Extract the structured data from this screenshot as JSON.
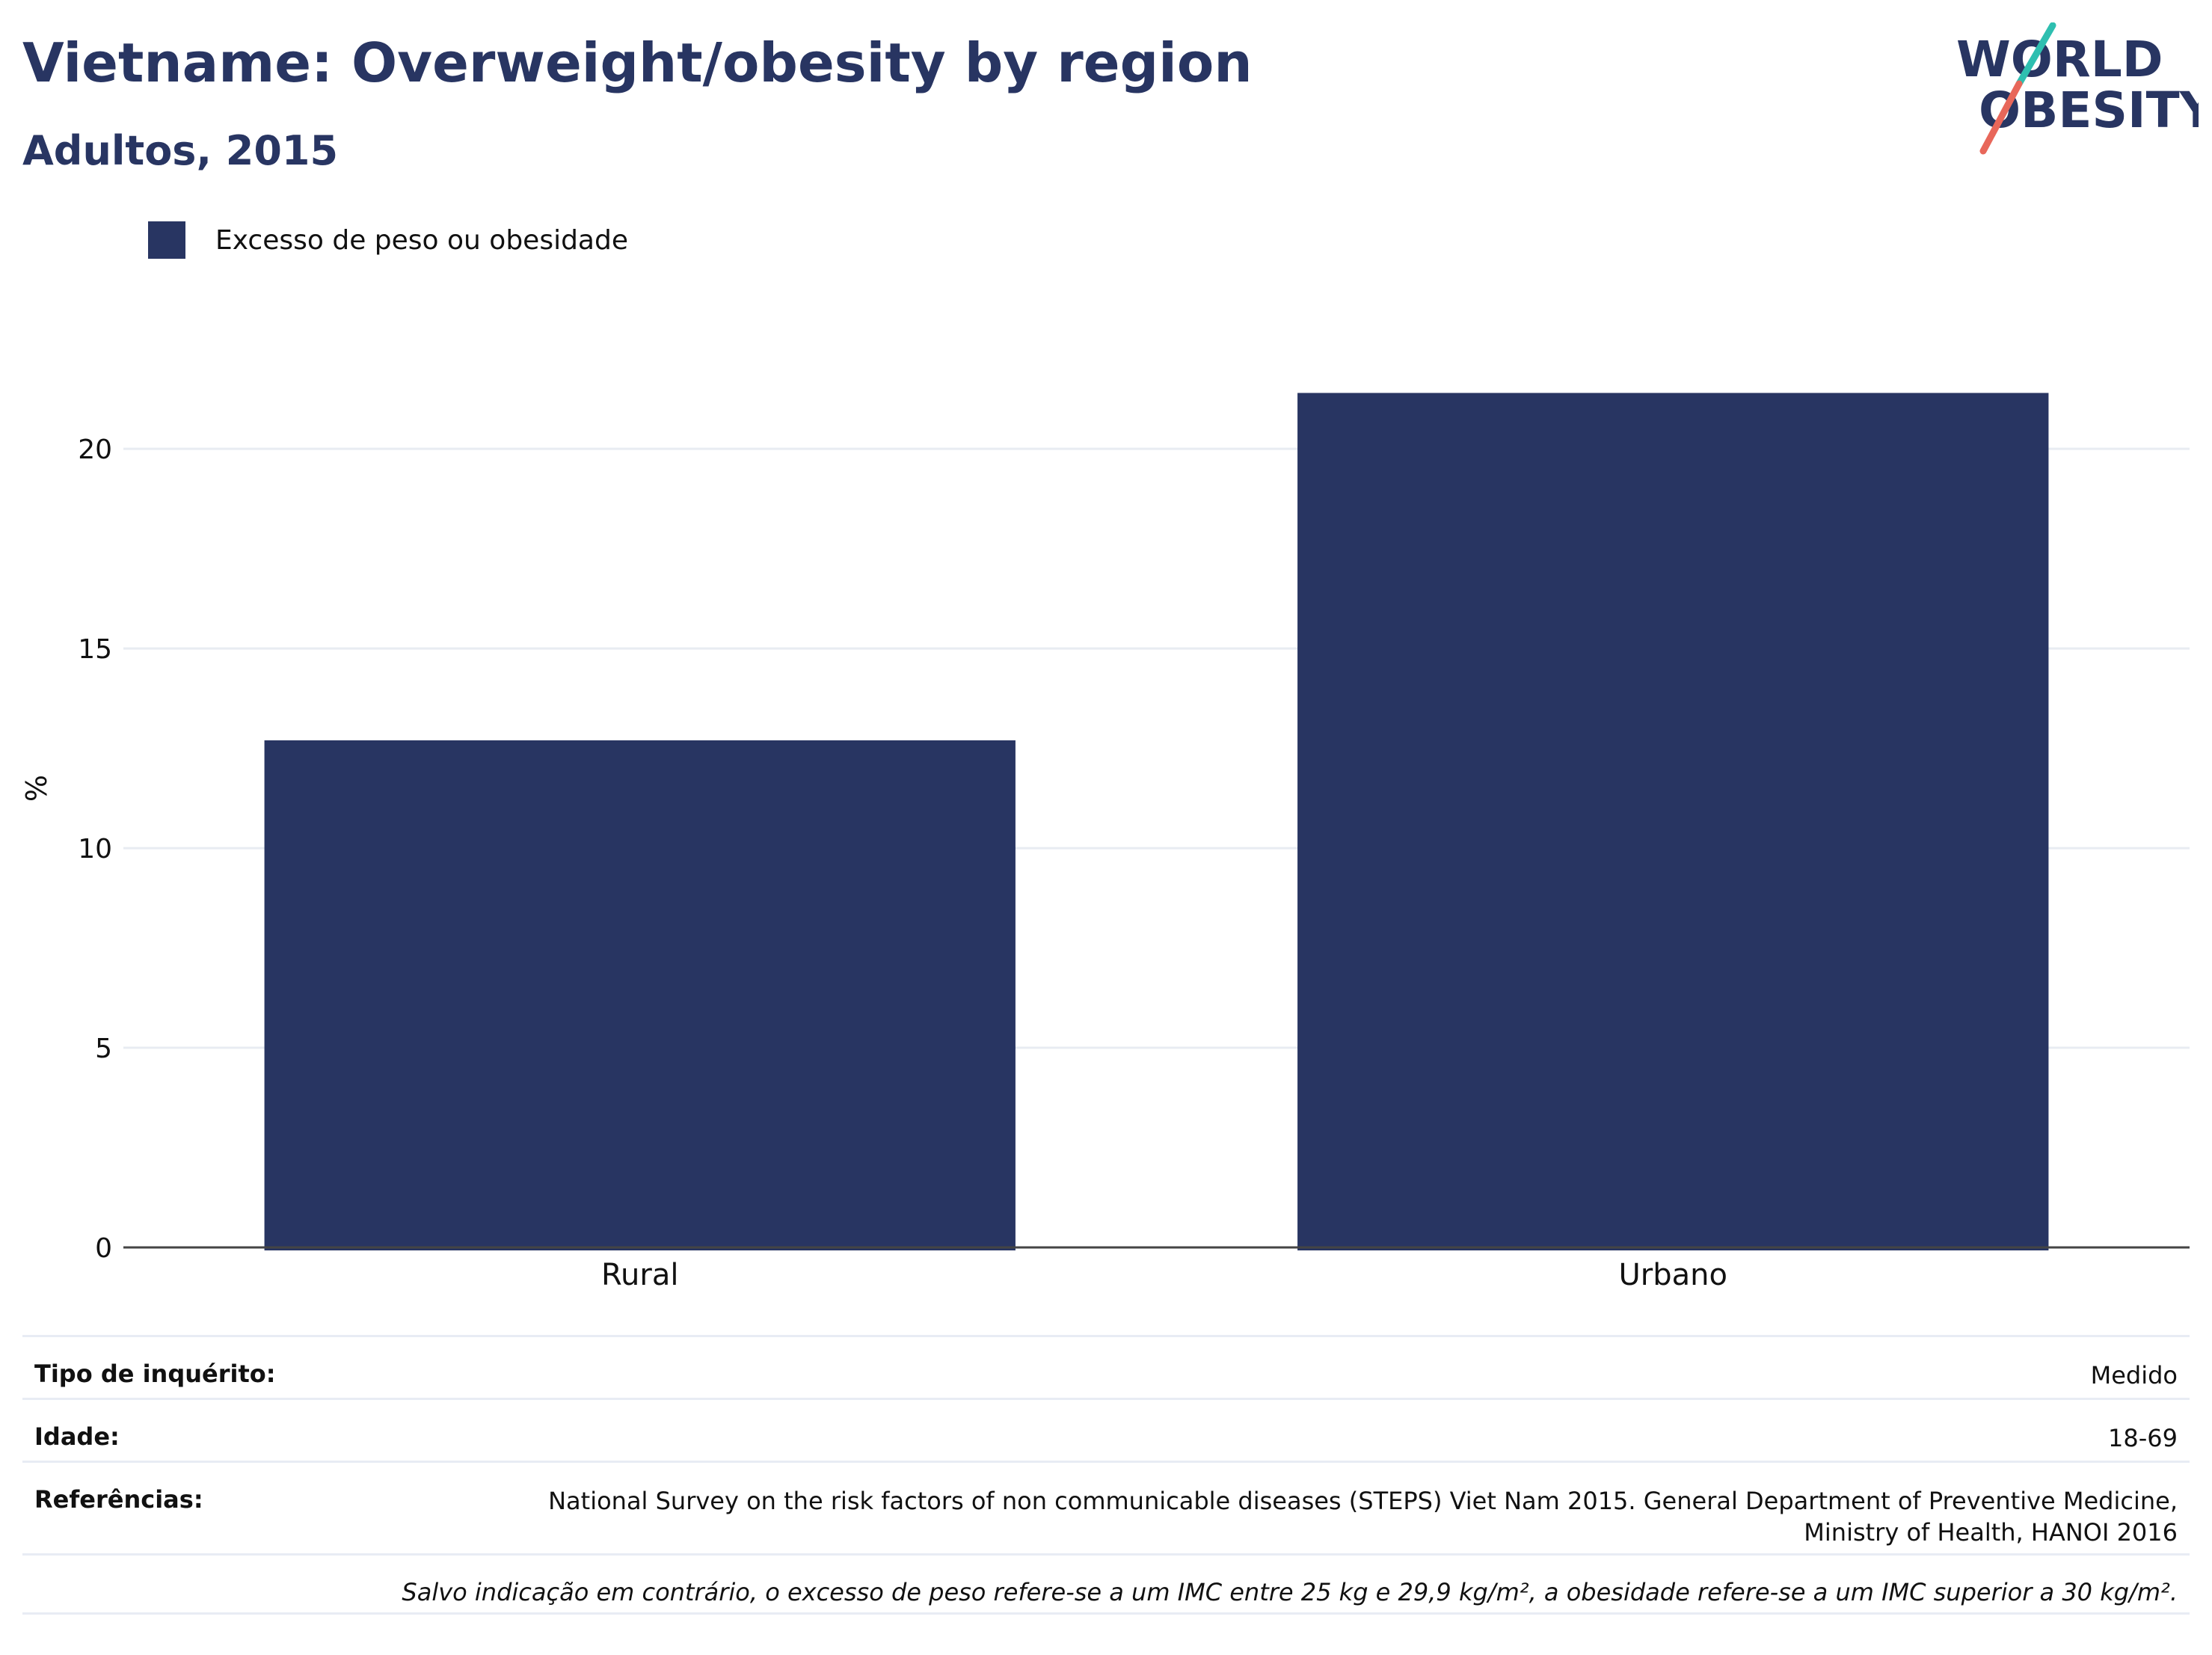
{
  "header": {
    "title": "Vietname: Overweight/obesity by region",
    "subtitle": "Adultos, 2015"
  },
  "logo": {
    "line1": "WORLD",
    "line2": "OBESITY",
    "colors": {
      "text": "#283562",
      "slash_top": "#2ebfb0",
      "slash_bottom": "#e8675a"
    }
  },
  "legend": {
    "label": "Excesso de peso ou obesidade"
  },
  "chart_data": {
    "type": "bar",
    "categories": [
      "Rural",
      "Urbano"
    ],
    "series": [
      {
        "name": "Excesso de peso ou obesidade",
        "values": [
          12.7,
          21.4
        ],
        "color": "#283562"
      }
    ],
    "ylabel": "%",
    "ylim": [
      0,
      23
    ],
    "yticks": [
      0,
      5,
      10,
      15,
      20
    ],
    "grid": true,
    "legend_position": "top-left"
  },
  "info": {
    "survey_type_label": "Tipo de inquérito:",
    "survey_type_value": "Medido",
    "age_label": "Idade:",
    "age_value": "18-69",
    "references_label": "Referências:",
    "references_line1": "National Survey on the risk factors of non communicable diseases (STEPS) Viet Nam 2015. General Department of Preventive Medicine,",
    "references_line2": "Ministry of Health, HANOI 2016",
    "note": "Salvo indicação em contrário, o excesso de peso refere-se a um IMC entre 25 kg e 29,9 kg/m², a obesidade refere-se a um IMC superior a 30 kg/m²."
  }
}
